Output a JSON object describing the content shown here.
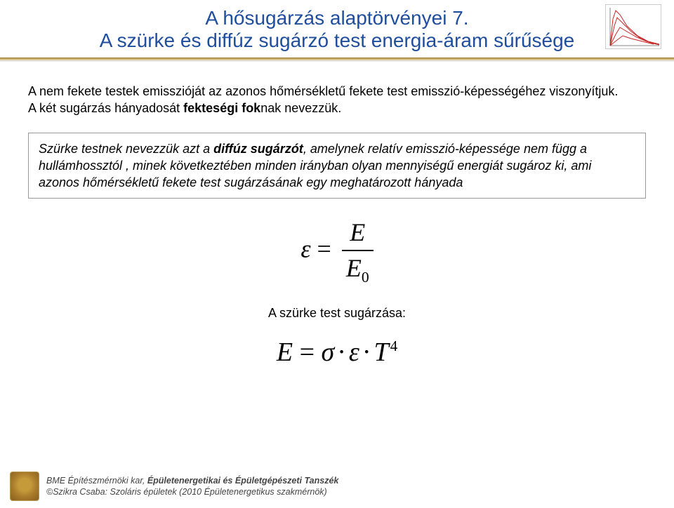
{
  "header": {
    "title_line1": "A hősugárzás alaptörvényei 7.",
    "title_line2": "A szürke és diffúz sugárzó test energia-áram sűrűsége",
    "title_color": "#1f4e9c",
    "chart": {
      "curves": [
        {
          "color": "#c62828",
          "points": [
            [
              6,
              58
            ],
            [
              10,
              20
            ],
            [
              14,
              8
            ],
            [
              20,
              14
            ],
            [
              30,
              30
            ],
            [
              45,
              44
            ],
            [
              60,
              52
            ],
            [
              76,
              56
            ]
          ]
        },
        {
          "color": "#c62828",
          "points": [
            [
              6,
              58
            ],
            [
              12,
              30
            ],
            [
              16,
              18
            ],
            [
              24,
              26
            ],
            [
              36,
              38
            ],
            [
              50,
              48
            ],
            [
              64,
              54
            ],
            [
              76,
              57
            ]
          ]
        },
        {
          "color": "#c62828",
          "points": [
            [
              6,
              58
            ],
            [
              14,
              42
            ],
            [
              20,
              32
            ],
            [
              30,
              38
            ],
            [
              44,
              46
            ],
            [
              58,
              52
            ],
            [
              72,
              56
            ]
          ]
        },
        {
          "color": "#c62828",
          "points": [
            [
              6,
              58
            ],
            [
              16,
              50
            ],
            [
              24,
              44
            ],
            [
              36,
              48
            ],
            [
              52,
              52
            ],
            [
              68,
              56
            ]
          ]
        }
      ],
      "width": 80,
      "height": 64
    }
  },
  "body": {
    "para1_a": "A nem fekete testek emisszióját az azonos hőmérsékletű fekete test emisszió-képességéhez viszonyítjuk.",
    "para1_b": "A két sugárzás hányadosát ",
    "para1_bold": "fekteségi fok",
    "para1_c": "nak nevezzük.",
    "def_a": "Szürke testnek nevezzük azt a ",
    "def_bold": "diffúz sugárzót",
    "def_b": ", amelynek relatív emisszió-képessége nem függ a hullámhossztól , minek következtében minden irányban olyan mennyiségű energiát sugároz ki, ami azonos hőmérsékletű fekete test sugárzásának egy meghatározott hányada",
    "eq1": {
      "lhs": "ε",
      "eq": " = ",
      "num": "E",
      "den_base": "E",
      "den_sub": "0"
    },
    "label_mid": "A szürke test sugárzása:",
    "eq2": {
      "E": "E",
      "eq": " = ",
      "sigma": "σ",
      "eps": "ε",
      "T": "T",
      "exp": "4"
    }
  },
  "footer": {
    "line1_a": "BME Építészmérnöki kar, ",
    "line1_b": "Épületenergetikai és Épületgépészeti Tanszék",
    "line2": "©Szikra Csaba: Szoláris épületek  (2010  Épületenergetikus szakmérnök)"
  }
}
